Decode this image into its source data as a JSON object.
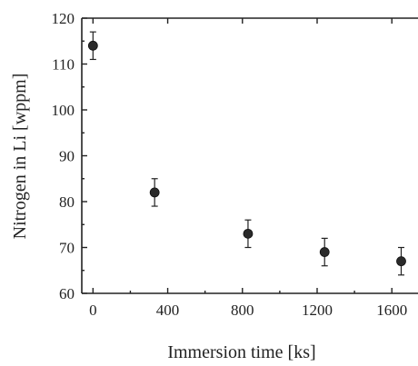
{
  "chart_data": {
    "type": "scatter",
    "title": "",
    "xlabel": "Immersion time [ks]",
    "ylabel": "Nitrogen in Li [wppm]",
    "xlim": [
      -60,
      1740
    ],
    "ylim": [
      60,
      120
    ],
    "xticks": [
      0,
      400,
      800,
      1200,
      1600
    ],
    "yticks": [
      60,
      70,
      80,
      90,
      100,
      110,
      120
    ],
    "grid": false,
    "legend": "none",
    "series": [
      {
        "x": [
          0,
          330,
          830,
          1240,
          1650
        ],
        "y": [
          114,
          82,
          73,
          69,
          67
        ],
        "yerr": [
          3,
          3,
          3,
          3,
          3
        ]
      }
    ]
  }
}
